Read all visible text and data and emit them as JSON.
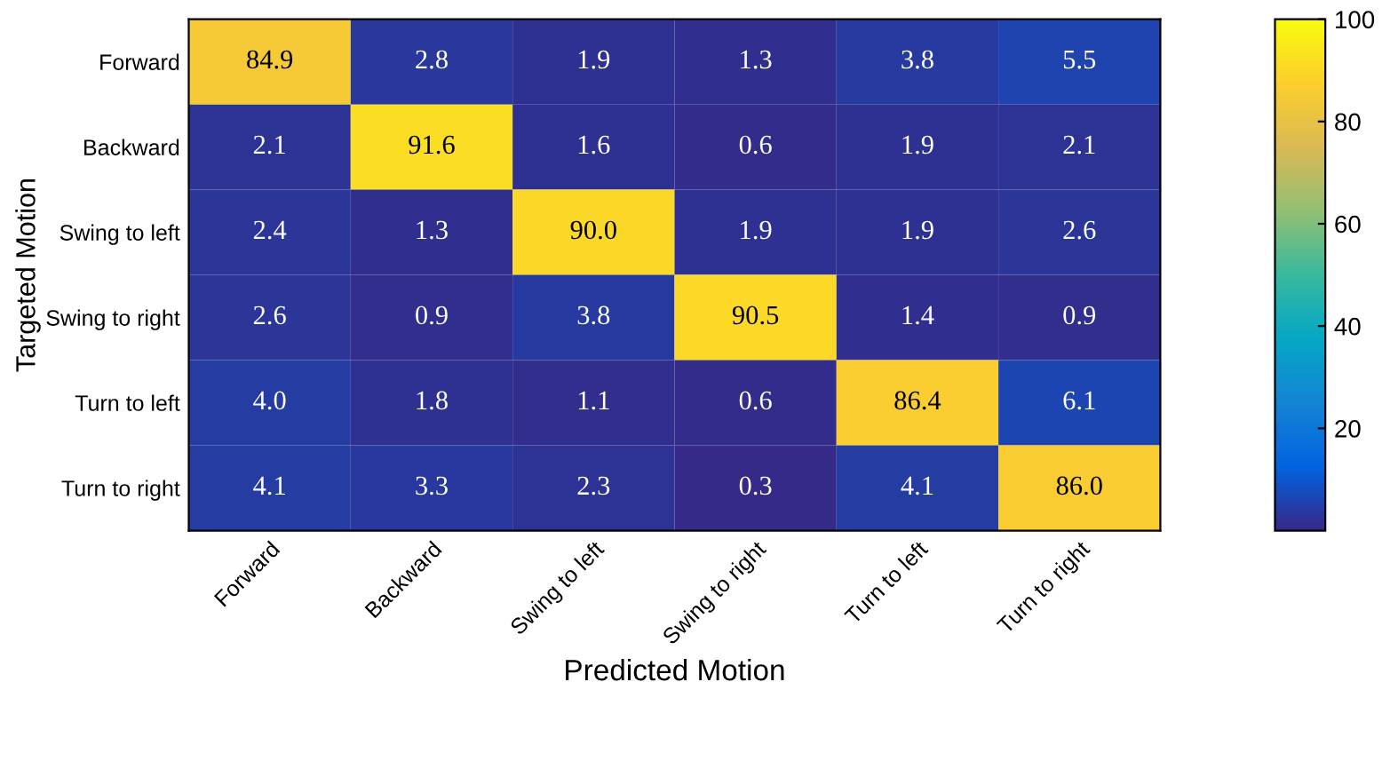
{
  "chart_data": {
    "type": "heatmap",
    "xlabel": "Predicted Motion",
    "ylabel": "Targeted Motion",
    "categories": [
      "Forward",
      "Backward",
      "Swing to left",
      "Swing to right",
      "Turn to left",
      "Turn to right"
    ],
    "y_categories": [
      "Forward",
      "Backward",
      "Swing to left",
      "Swing to right",
      "Turn to left",
      "Turn to right"
    ],
    "cells": [
      [
        84.9,
        2.8,
        1.9,
        1.3,
        3.8,
        5.5
      ],
      [
        2.1,
        91.6,
        1.6,
        0.6,
        1.9,
        2.1
      ],
      [
        2.4,
        1.3,
        90.0,
        1.9,
        1.9,
        2.6
      ],
      [
        2.6,
        0.9,
        3.8,
        90.5,
        1.4,
        0.9
      ],
      [
        4.0,
        1.8,
        1.1,
        0.6,
        86.4,
        6.1
      ],
      [
        4.1,
        3.3,
        2.3,
        0.3,
        4.1,
        86.0
      ]
    ],
    "cell_labels": [
      [
        "84.9",
        "2.8",
        "1.9",
        "1.3",
        "3.8",
        "5.5"
      ],
      [
        "2.1",
        "91.6",
        "1.6",
        "0.6",
        "1.9",
        "2.1"
      ],
      [
        "2.4",
        "1.3",
        "90.0",
        "1.9",
        "1.9",
        "2.6"
      ],
      [
        "2.6",
        "0.9",
        "3.8",
        "90.5",
        "1.4",
        "0.9"
      ],
      [
        "4.0",
        "1.8",
        "1.1",
        "0.6",
        "86.4",
        "6.1"
      ],
      [
        "4.1",
        "3.3",
        "2.3",
        "0.3",
        "4.1",
        "86.0"
      ]
    ],
    "clim": [
      0,
      100
    ],
    "cticks": [
      20,
      40,
      60,
      80,
      100
    ]
  }
}
